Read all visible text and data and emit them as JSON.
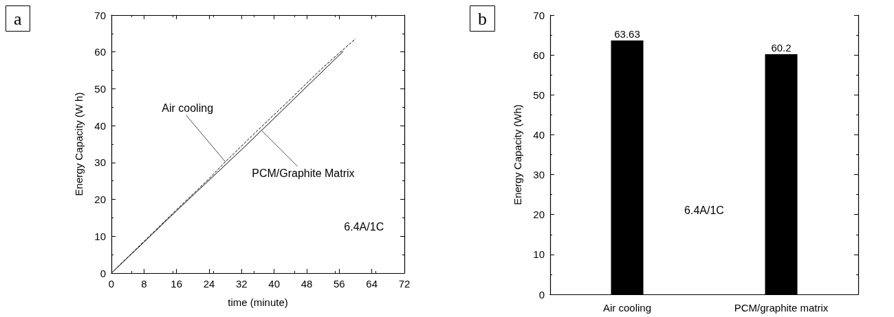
{
  "chart_data": [
    {
      "type": "line",
      "title": "a",
      "xlabel": "time (minute)",
      "ylabel": "Energy Capacity (W h)",
      "xlim": [
        0,
        72
      ],
      "xticks": [
        0,
        8,
        16,
        24,
        32,
        40,
        48,
        56,
        64,
        72
      ],
      "ylim": [
        0,
        70
      ],
      "yticks": [
        0,
        10,
        20,
        30,
        40,
        50,
        60,
        70
      ],
      "grid": false,
      "marker": "none",
      "series": [
        {
          "color": "#000000",
          "line_style": "dashed",
          "x": [
            0,
            8,
            16,
            24,
            28,
            36,
            44,
            52,
            60
          ],
          "values": [
            0,
            8.6,
            17.2,
            25.6,
            30.2,
            38.8,
            47.2,
            55.8,
            63.6
          ]
        },
        {
          "color": "#000000",
          "line_style": "solid",
          "x": [
            0,
            8,
            16,
            24,
            32,
            40,
            48,
            57
          ],
          "values": [
            0,
            8.4,
            16.9,
            25.2,
            33.5,
            42,
            50.6,
            60.2
          ]
        }
      ],
      "annotations": [
        {
          "text": "Air cooling",
          "x": 28,
          "y": 30.2
        },
        {
          "text": "PCM/Graphite Matrix",
          "x": 37,
          "y": 38.6
        },
        "6.4A/1C"
      ]
    },
    {
      "type": "bar",
      "title": "b",
      "ylabel": "Energy Capacity (Wh)",
      "categories": [
        "Air cooling",
        "PCM/graphite matrix"
      ],
      "values": [
        63.63,
        60.2
      ],
      "color": "#000000",
      "data_labels": true,
      "ylim": [
        0,
        70
      ],
      "yticks": [
        0,
        10,
        20,
        30,
        40,
        50,
        60,
        70
      ],
      "grid": false,
      "annotations": [
        "6.4A/1C"
      ]
    }
  ]
}
